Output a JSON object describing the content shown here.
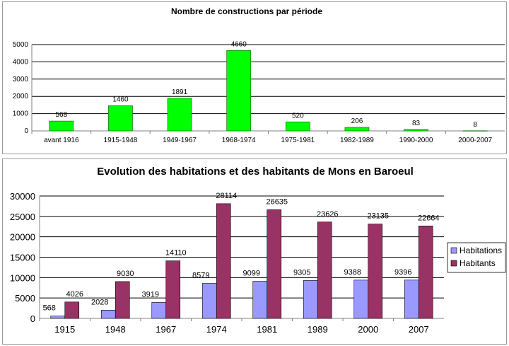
{
  "chart_data": [
    {
      "type": "bar",
      "title": "Nombre de constructions par période",
      "categories": [
        "avant 1916",
        "1915-1948",
        "1949-1967",
        "1968-1974",
        "1975-1981",
        "1982-1989",
        "1990-2000",
        "2000-2007"
      ],
      "values": [
        568,
        1460,
        1891,
        4660,
        520,
        206,
        83,
        8
      ],
      "data_labels": [
        "568",
        "1460",
        "1891",
        "4660",
        "520",
        "206",
        "83",
        "8"
      ],
      "y_ticks": [
        "0",
        "1000",
        "2000",
        "3000",
        "4000",
        "5000"
      ],
      "ylim": [
        0,
        5000
      ],
      "grid": true,
      "colors": {
        "bar": "#00ff00",
        "bar_stroke": "#1a7f1a"
      }
    },
    {
      "type": "bar",
      "title": "Evolution des habitations et des habitants de Mons en Baroeul",
      "categories": [
        "1915",
        "1948",
        "1967",
        "1974",
        "1981",
        "1989",
        "2000",
        "2007"
      ],
      "series": [
        {
          "name": "Habitations",
          "values": [
            568,
            2028,
            3919,
            8579,
            9099,
            9305,
            9388,
            9396
          ],
          "labels": [
            "568",
            "2028",
            "3919",
            "8579",
            "9099",
            "9305",
            "9388",
            "9396"
          ],
          "color": "#9999ff"
        },
        {
          "name": "Habitants",
          "values": [
            4026,
            9030,
            14110,
            28114,
            26635,
            23626,
            23135,
            22664
          ],
          "labels": [
            "4026",
            "9030",
            "14110",
            "28114",
            "26635",
            "23626",
            "23135",
            "22664"
          ],
          "color": "#993366"
        }
      ],
      "y_ticks": [
        "0",
        "5000",
        "10000",
        "15000",
        "20000",
        "25000",
        "30000"
      ],
      "ylim": [
        0,
        30000
      ],
      "grid": true,
      "legend_position": "right"
    }
  ]
}
